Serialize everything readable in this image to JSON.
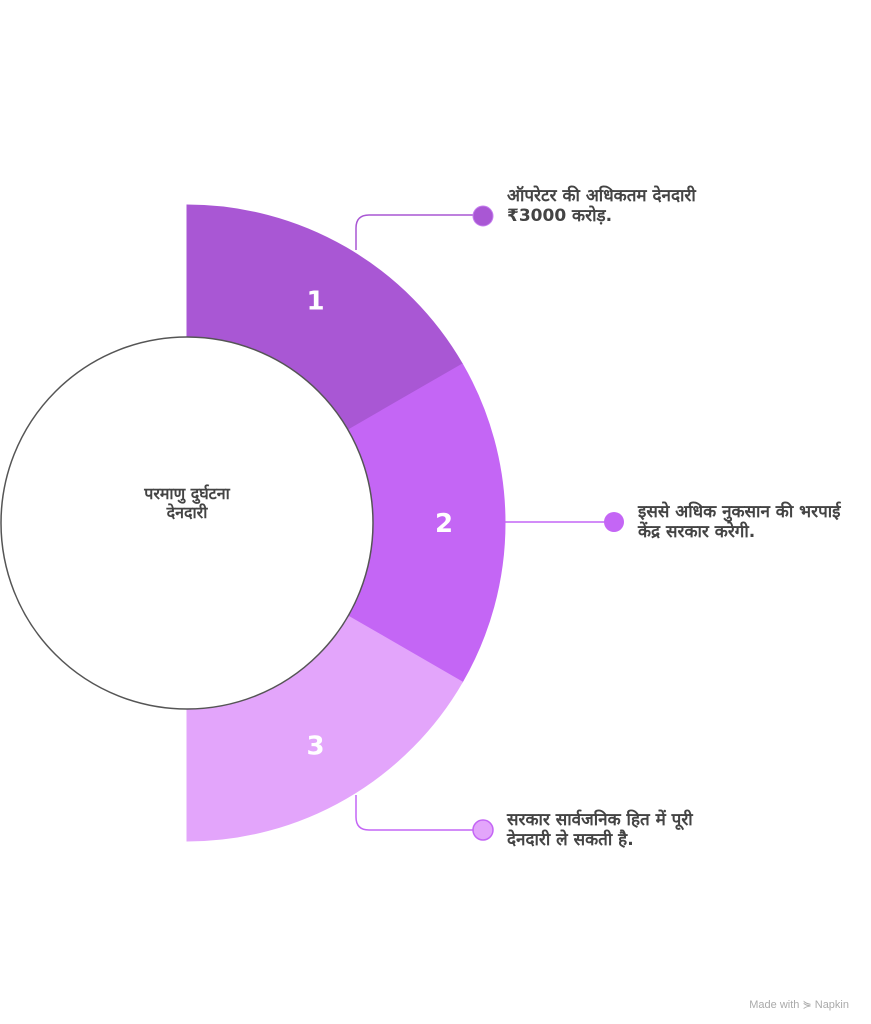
{
  "center": {
    "line1": "परमाणु दुर्घटना",
    "line2": "देनदारी"
  },
  "segments": [
    {
      "number": "1",
      "color": "#a957d4",
      "text": "ऑपरेटर की अधिकतम देनदारी ₹3000 करोड़."
    },
    {
      "number": "2",
      "color": "#c466f5",
      "text": "इससे अधिक नुकसान की भरपाई केंद्र सरकार करेगी."
    },
    {
      "number": "3",
      "color": "#e3a5fb",
      "text": "सरकार सार्वजनिक हित में पूरी देनदारी ले सकती है."
    }
  ],
  "footer": {
    "made_with": "Made with",
    "brand": "Napkin"
  }
}
